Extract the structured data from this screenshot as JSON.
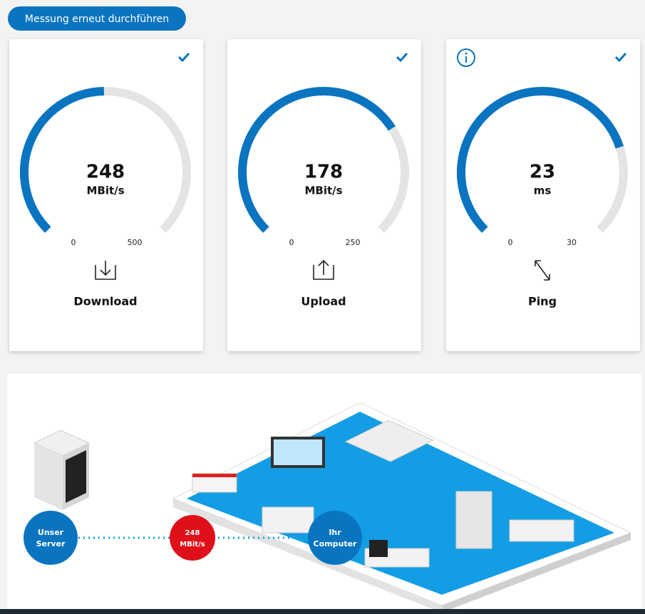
{
  "button": {
    "label": "Messung erneut durchführen"
  },
  "gauges": [
    {
      "value": 248,
      "unit": "MBit/s",
      "min": 0,
      "max": 500,
      "label": "Download"
    },
    {
      "value": 178,
      "unit": "MBit/s",
      "min": 0,
      "max": 250,
      "label": "Upload"
    },
    {
      "value": 23,
      "unit": "ms",
      "min": 0,
      "max": 30,
      "label": "Ping"
    }
  ],
  "diagram": {
    "server_label": [
      "Unser",
      "Server"
    ],
    "speed_label": [
      "248",
      "MBit/s"
    ],
    "computer_label": [
      "Ihr",
      "Computer"
    ]
  }
}
